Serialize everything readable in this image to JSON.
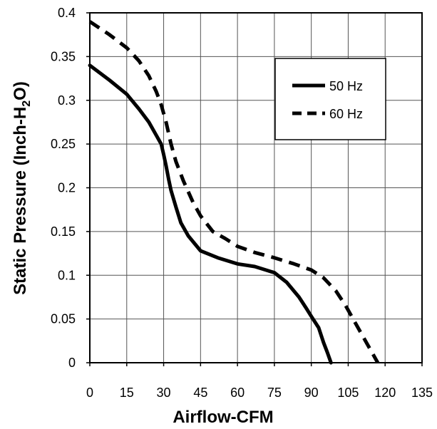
{
  "chart_data": {
    "type": "line",
    "xlabel": "Airflow-CFM",
    "ylabel_prefix": "Static Pressure (Inch-H",
    "ylabel_sub": "2",
    "ylabel_suffix": "O)",
    "xlim": [
      0,
      135
    ],
    "ylim": [
      0,
      0.4
    ],
    "x_ticks": [
      0,
      15,
      30,
      45,
      60,
      75,
      90,
      105,
      120,
      135
    ],
    "y_ticks": [
      0,
      0.05,
      0.1,
      0.15,
      0.2,
      0.25,
      0.3,
      0.35,
      0.4
    ],
    "x_tick_labels": [
      "0",
      "15",
      "30",
      "45",
      "60",
      "75",
      "90",
      "105",
      "120",
      "135"
    ],
    "y_tick_labels": [
      "0",
      "0.05",
      "0.1",
      "0.15",
      "0.2",
      "0.25",
      "0.3",
      "0.35",
      "0.4"
    ],
    "grid": true,
    "legend_position": "top-right",
    "series": [
      {
        "name": "50 Hz",
        "style": "solid",
        "color": "#000000",
        "x": [
          0,
          8,
          15,
          20,
          24,
          27,
          29,
          30,
          31,
          32,
          33,
          35,
          37,
          40,
          45,
          52,
          60,
          67,
          75,
          80,
          85,
          88,
          90,
          93,
          95,
          96.5,
          98
        ],
        "y": [
          0.34,
          0.323,
          0.307,
          0.29,
          0.275,
          0.26,
          0.25,
          0.238,
          0.225,
          0.21,
          0.197,
          0.178,
          0.16,
          0.145,
          0.128,
          0.12,
          0.113,
          0.11,
          0.103,
          0.092,
          0.075,
          0.062,
          0.053,
          0.04,
          0.023,
          0.012,
          0
        ]
      },
      {
        "name": "60 Hz",
        "style": "dashed",
        "color": "#000000",
        "x": [
          0,
          8,
          15,
          20,
          24,
          27,
          29,
          31,
          33,
          35,
          38,
          42,
          45,
          50,
          55,
          60,
          67,
          75,
          83,
          90,
          95,
          100,
          104,
          108,
          112,
          115,
          117
        ],
        "y": [
          0.39,
          0.375,
          0.36,
          0.345,
          0.328,
          0.31,
          0.295,
          0.275,
          0.25,
          0.23,
          0.208,
          0.183,
          0.168,
          0.15,
          0.142,
          0.133,
          0.126,
          0.12,
          0.113,
          0.106,
          0.097,
          0.082,
          0.065,
          0.045,
          0.025,
          0.01,
          0
        ]
      }
    ]
  }
}
